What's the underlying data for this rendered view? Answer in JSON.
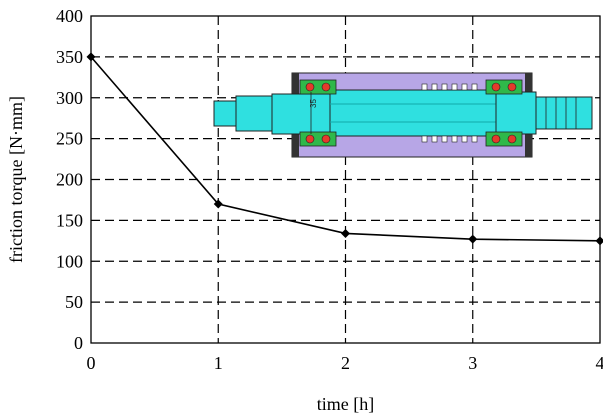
{
  "chart_data": {
    "type": "line",
    "title": "",
    "xlabel": "time [h]",
    "ylabel": "friction torque [N·mm]",
    "xlim": [
      0,
      4
    ],
    "ylim": [
      0,
      400
    ],
    "x_ticks": [
      "0",
      "1",
      "2",
      "3",
      "4"
    ],
    "y_ticks": [
      "0",
      "50",
      "100",
      "150",
      "200",
      "250",
      "300",
      "350",
      "400"
    ],
    "grid": true,
    "grid_style": "dashed",
    "x": [
      0,
      1,
      2,
      3,
      4
    ],
    "series": [
      {
        "values": [
          350,
          170,
          134,
          127,
          125
        ],
        "color": "#000000",
        "marker": "diamond"
      }
    ],
    "inset": {
      "content": "bearing-spindle-cross-section",
      "dimension_text": "35",
      "colors": {
        "housing": "#b7a6e6",
        "shaft": "#2fe0e0",
        "seal": "#2fb84a",
        "roller": "#e53a2b"
      }
    }
  }
}
